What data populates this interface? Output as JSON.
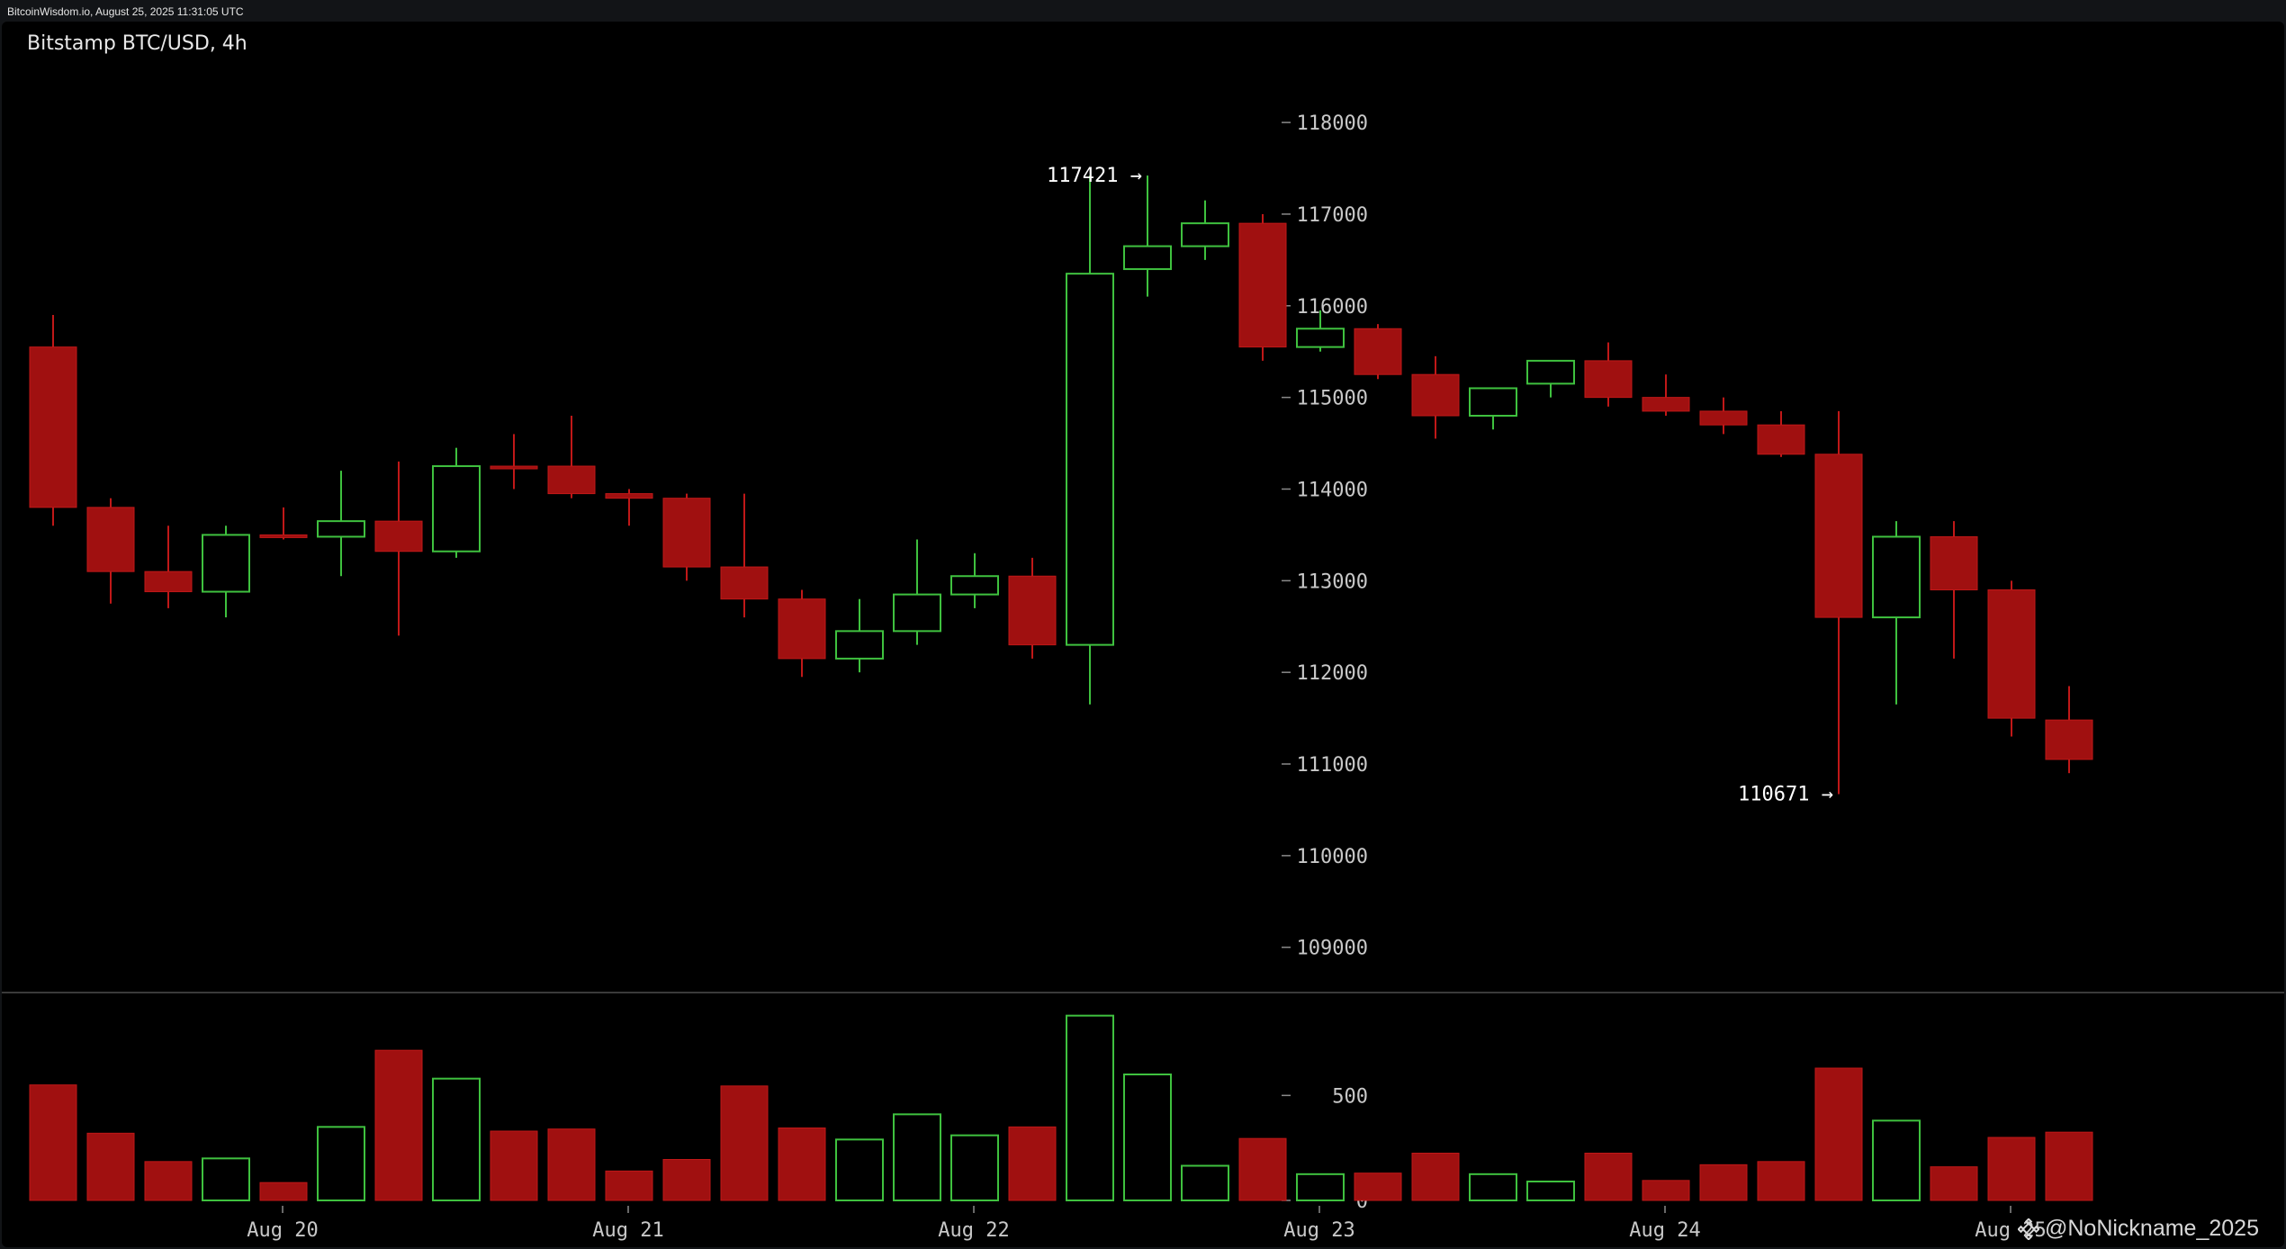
{
  "header": {
    "timestamp": "BitcoinWisdom.io, August 25, 2025 11:31:05 UTC"
  },
  "chart_title": "Bitstamp BTC/USD, 4h",
  "watermark": {
    "icon": "binance-square-icon",
    "text": "@NoNickname_2025"
  },
  "colors": {
    "up": "#3fc13f",
    "down": "#a01010",
    "down_border": "#c01818",
    "background": "#000000",
    "axis_text": "#c8c8c8"
  },
  "chart_data": {
    "type": "candlestick",
    "title": "Bitstamp BTC/USD, 4h",
    "price_axis": {
      "ticks": [
        109000,
        110000,
        111000,
        112000,
        113000,
        114000,
        115000,
        116000,
        117000,
        118000
      ],
      "range": [
        108300,
        118600
      ]
    },
    "volume_axis": {
      "ticks": [
        0,
        500
      ],
      "range": [
        0,
        900
      ]
    },
    "x_labels": [
      {
        "label": "Aug 20",
        "at_candle": 4
      },
      {
        "label": "Aug 21",
        "at_candle": 10
      },
      {
        "label": "Aug 22",
        "at_candle": 16
      },
      {
        "label": "Aug 23",
        "at_candle": 22
      },
      {
        "label": "Aug 24",
        "at_candle": 28
      },
      {
        "label": "Aug 25",
        "at_candle": 34
      }
    ],
    "annotations": [
      {
        "text": "117421 →",
        "candle": 19,
        "price": 117421,
        "side": "left"
      },
      {
        "text": "110671 →",
        "candle": 31,
        "price": 110671,
        "side": "left"
      }
    ],
    "candles": [
      {
        "o": 115550,
        "h": 115900,
        "l": 113600,
        "c": 113800,
        "v": 550
      },
      {
        "o": 113800,
        "h": 113900,
        "l": 112750,
        "c": 113100,
        "v": 320
      },
      {
        "o": 113100,
        "h": 113600,
        "l": 112700,
        "c": 112880,
        "v": 185
      },
      {
        "o": 112880,
        "h": 113600,
        "l": 112600,
        "c": 113500,
        "v": 200
      },
      {
        "o": 113500,
        "h": 113800,
        "l": 113450,
        "c": 113480,
        "v": 85
      },
      {
        "o": 113480,
        "h": 114200,
        "l": 113050,
        "c": 113650,
        "v": 350
      },
      {
        "o": 113650,
        "h": 114300,
        "l": 112400,
        "c": 113320,
        "v": 715
      },
      {
        "o": 113320,
        "h": 114450,
        "l": 113250,
        "c": 114250,
        "v": 580
      },
      {
        "o": 114250,
        "h": 114600,
        "l": 114000,
        "c": 114250,
        "v": 330
      },
      {
        "o": 114250,
        "h": 114800,
        "l": 113900,
        "c": 113950,
        "v": 340
      },
      {
        "o": 113950,
        "h": 114000,
        "l": 113600,
        "c": 113900,
        "v": 140
      },
      {
        "o": 113900,
        "h": 113950,
        "l": 113000,
        "c": 113150,
        "v": 195
      },
      {
        "o": 113150,
        "h": 113950,
        "l": 112600,
        "c": 112800,
        "v": 545
      },
      {
        "o": 112800,
        "h": 112900,
        "l": 111950,
        "c": 112150,
        "v": 345
      },
      {
        "o": 112150,
        "h": 112800,
        "l": 112000,
        "c": 112450,
        "v": 290
      },
      {
        "o": 112450,
        "h": 113450,
        "l": 112300,
        "c": 112850,
        "v": 410
      },
      {
        "o": 112850,
        "h": 113300,
        "l": 112700,
        "c": 113050,
        "v": 310
      },
      {
        "o": 113050,
        "h": 113250,
        "l": 112150,
        "c": 112300,
        "v": 350
      },
      {
        "o": 112300,
        "h": 117421,
        "l": 111650,
        "c": 116350,
        "v": 880
      },
      {
        "o": 116400,
        "h": 117421,
        "l": 116100,
        "c": 116650,
        "v": 600
      },
      {
        "o": 116650,
        "h": 117150,
        "l": 116500,
        "c": 116900,
        "v": 165
      },
      {
        "o": 116900,
        "h": 117000,
        "l": 115400,
        "c": 115550,
        "v": 295
      },
      {
        "o": 115550,
        "h": 115950,
        "l": 115500,
        "c": 115750,
        "v": 125
      },
      {
        "o": 115750,
        "h": 115800,
        "l": 115200,
        "c": 115250,
        "v": 130
      },
      {
        "o": 115250,
        "h": 115450,
        "l": 114550,
        "c": 114800,
        "v": 225
      },
      {
        "o": 114800,
        "h": 115100,
        "l": 114650,
        "c": 115100,
        "v": 125
      },
      {
        "o": 115150,
        "h": 115400,
        "l": 115000,
        "c": 115400,
        "v": 90
      },
      {
        "o": 115400,
        "h": 115600,
        "l": 114900,
        "c": 115000,
        "v": 225
      },
      {
        "o": 115000,
        "h": 115250,
        "l": 114800,
        "c": 114850,
        "v": 95
      },
      {
        "o": 114850,
        "h": 115000,
        "l": 114600,
        "c": 114700,
        "v": 170
      },
      {
        "o": 114700,
        "h": 114850,
        "l": 114350,
        "c": 114380,
        "v": 185
      },
      {
        "o": 114380,
        "h": 114850,
        "l": 110671,
        "c": 112600,
        "v": 630
      },
      {
        "o": 112600,
        "h": 113650,
        "l": 111650,
        "c": 113480,
        "v": 380
      },
      {
        "o": 113480,
        "h": 113650,
        "l": 112150,
        "c": 112900,
        "v": 160
      },
      {
        "o": 112900,
        "h": 113000,
        "l": 111300,
        "c": 111500,
        "v": 300
      },
      {
        "o": 111480,
        "h": 111850,
        "l": 110900,
        "c": 111050,
        "v": 325
      }
    ]
  }
}
